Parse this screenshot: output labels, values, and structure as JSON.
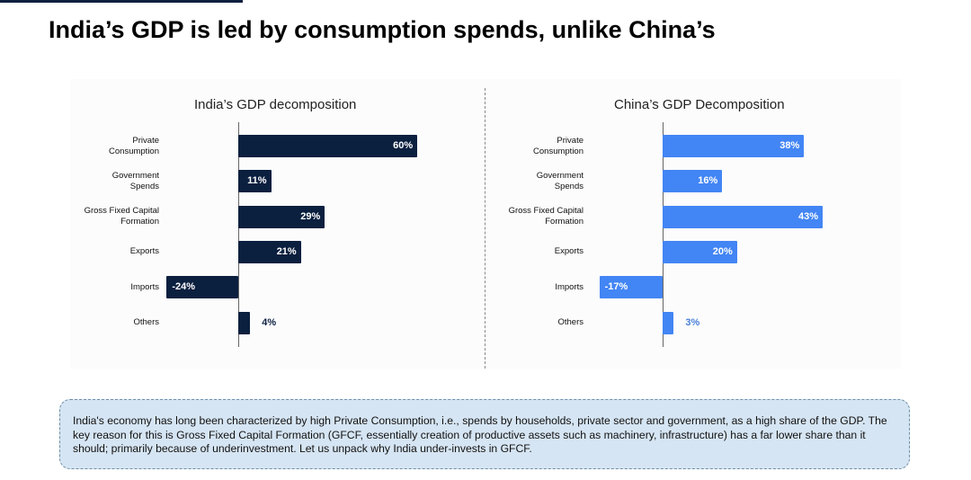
{
  "page": {
    "title": "India’s GDP is led by consumption spends, unlike China’s",
    "callout": "India's economy has long been characterized by high Private Consumption, i.e., spends by households, private sector and government, as a high share of the GDP. The key reason for this is Gross Fixed Capital Formation (GFCF, essentially creation of productive assets such as machinery, infrastructure) has a far lower share than it should; primarily because of underinvestment. Let us unpack why India under-invests in GFCF."
  },
  "colors": {
    "india_bar": "#0b1f3f",
    "china_bar": "#4285f4",
    "india_outside_label": "#0b1f3f",
    "china_outside_label": "#4a80d8",
    "inside_label": "#ffffff"
  },
  "chart_data": [
    {
      "type": "bar",
      "orientation": "horizontal",
      "title": "India’s GDP decomposition",
      "categories": [
        "Private\nConsumption",
        "Government\nSpends",
        "Gross Fixed Capital\nFormation",
        "Exports",
        "Imports",
        "Others"
      ],
      "values": [
        60,
        11,
        29,
        21,
        -24,
        4
      ],
      "labels": [
        "60%",
        "11%",
        "29%",
        "21%",
        "-24%",
        "4%"
      ],
      "unit": "% of GDP",
      "xlim": [
        -25,
        62
      ],
      "grid": false,
      "legend": "none"
    },
    {
      "type": "bar",
      "orientation": "horizontal",
      "title": "China’s GDP Decomposition",
      "categories": [
        "Private\nConsumption",
        "Government\nSpends",
        "Gross Fixed Capital\nFormation",
        "Exports",
        "Imports",
        "Others"
      ],
      "values": [
        38,
        16,
        43,
        20,
        -17,
        3
      ],
      "labels": [
        "38%",
        "16%",
        "43%",
        "20%",
        "-17%",
        "3%"
      ],
      "unit": "% of GDP",
      "xlim": [
        -18,
        45
      ],
      "grid": false,
      "legend": "none"
    }
  ]
}
